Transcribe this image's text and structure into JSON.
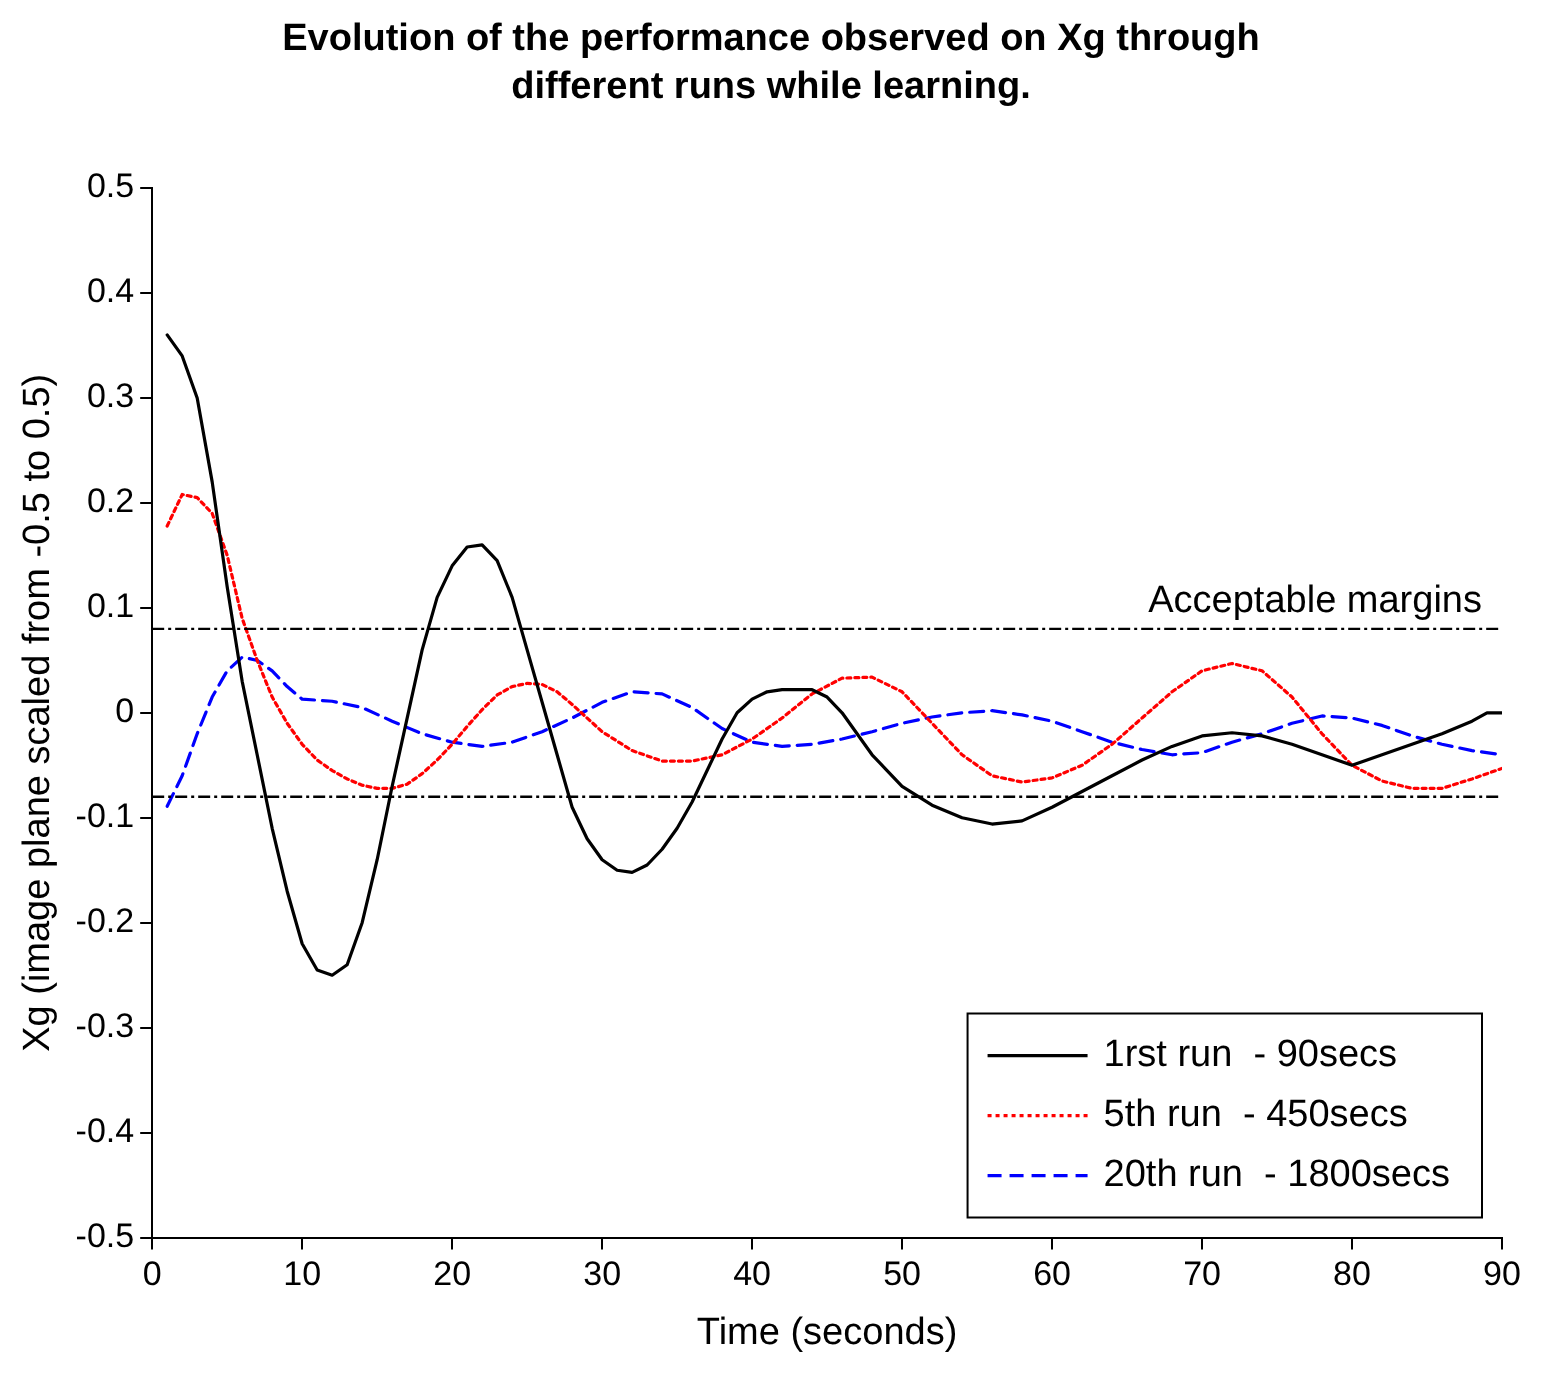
{
  "chart_data": {
    "type": "line",
    "title": "Evolution of the performance observed on Xg through different runs while learning.",
    "xlabel": "Time (seconds)",
    "ylabel": "Xg (image plane scaled from -0.5 to 0.5)",
    "xlim": [
      0,
      90
    ],
    "xticks": [
      0,
      10,
      20,
      30,
      40,
      50,
      60,
      70,
      80,
      90
    ],
    "ylim": [
      -0.5,
      0.5
    ],
    "yticks": [
      -0.5,
      -0.4,
      -0.3,
      -0.2,
      -0.1,
      0,
      0.1,
      0.2,
      0.3,
      0.4,
      0.5
    ],
    "grid": false,
    "legend": "bottom right",
    "marker": "none",
    "ref_lines": [
      {
        "axis": "y",
        "value": 0.08,
        "label": "Acceptable margins",
        "color": "#000000"
      },
      {
        "axis": "y",
        "value": -0.08,
        "color": "#000000"
      }
    ],
    "series": [
      {
        "name": "1rst run  - 90secs",
        "color": "#000000",
        "line_style": "solid",
        "x": [
          1,
          2,
          3,
          4,
          5,
          6,
          7,
          8,
          9,
          10,
          11,
          12,
          13,
          14,
          15,
          16,
          17,
          18,
          19,
          20,
          21,
          22,
          23,
          24,
          25,
          26,
          27,
          28,
          29,
          30,
          31,
          32,
          33,
          34,
          35,
          36,
          37,
          38,
          39,
          40,
          41,
          42,
          43,
          44,
          45,
          46,
          47,
          48,
          49,
          50,
          52,
          54,
          56,
          58,
          60,
          62,
          64,
          66,
          68,
          70,
          72,
          74,
          76,
          78,
          80,
          82,
          84,
          86,
          88,
          89,
          90
        ],
        "values": [
          0.36,
          0.34,
          0.3,
          0.22,
          0.12,
          0.03,
          -0.04,
          -0.11,
          -0.17,
          -0.22,
          -0.245,
          -0.25,
          -0.24,
          -0.2,
          -0.14,
          -0.07,
          -0.005,
          0.06,
          0.11,
          0.14,
          0.158,
          0.16,
          0.145,
          0.11,
          0.06,
          0.01,
          -0.04,
          -0.09,
          -0.12,
          -0.14,
          -0.15,
          -0.152,
          -0.145,
          -0.13,
          -0.11,
          -0.085,
          -0.055,
          -0.025,
          0.0,
          0.013,
          0.02,
          0.022,
          0.022,
          0.022,
          0.015,
          0.0,
          -0.02,
          -0.04,
          -0.055,
          -0.07,
          -0.088,
          -0.1,
          -0.106,
          -0.103,
          -0.09,
          -0.075,
          -0.06,
          -0.045,
          -0.032,
          -0.022,
          -0.019,
          -0.022,
          -0.03,
          -0.04,
          -0.05,
          -0.04,
          -0.03,
          -0.02,
          -0.008,
          0.0,
          0.0
        ]
      },
      {
        "name": "5th run  - 450secs",
        "color": "#ff0000",
        "line_style": "dotted",
        "x": [
          1,
          2,
          3,
          4,
          5,
          6,
          7,
          8,
          9,
          10,
          11,
          12,
          13,
          14,
          15,
          16,
          17,
          18,
          19,
          20,
          21,
          22,
          23,
          24,
          25,
          26,
          27,
          28,
          30,
          32,
          34,
          36,
          38,
          40,
          42,
          44,
          46,
          48,
          50,
          52,
          54,
          56,
          58,
          60,
          62,
          64,
          66,
          68,
          70,
          72,
          74,
          76,
          78,
          80,
          82,
          84,
          86,
          88,
          90
        ],
        "values": [
          0.178,
          0.208,
          0.205,
          0.19,
          0.15,
          0.09,
          0.05,
          0.015,
          -0.01,
          -0.03,
          -0.045,
          -0.055,
          -0.063,
          -0.069,
          -0.072,
          -0.072,
          -0.068,
          -0.058,
          -0.045,
          -0.03,
          -0.013,
          0.003,
          0.017,
          0.025,
          0.028,
          0.027,
          0.02,
          0.008,
          -0.018,
          -0.036,
          -0.046,
          -0.046,
          -0.04,
          -0.025,
          -0.005,
          0.018,
          0.033,
          0.034,
          0.02,
          -0.01,
          -0.04,
          -0.06,
          -0.066,
          -0.062,
          -0.05,
          -0.03,
          -0.005,
          0.02,
          0.04,
          0.047,
          0.04,
          0.015,
          -0.02,
          -0.05,
          -0.065,
          -0.072,
          -0.072,
          -0.063,
          -0.053
        ]
      },
      {
        "name": "20th run  - 1800secs",
        "color": "#0000ff",
        "line_style": "dashed",
        "x": [
          1,
          2,
          3,
          4,
          5,
          6,
          7,
          8,
          9,
          10,
          12,
          14,
          16,
          18,
          20,
          22,
          24,
          26,
          28,
          30,
          32,
          34,
          36,
          38,
          40,
          42,
          44,
          46,
          48,
          50,
          52,
          54,
          56,
          58,
          60,
          62,
          64,
          66,
          68,
          70,
          72,
          74,
          76,
          78,
          80,
          82,
          84,
          86,
          88,
          90
        ],
        "values": [
          -0.089,
          -0.06,
          -0.02,
          0.015,
          0.04,
          0.053,
          0.05,
          0.04,
          0.025,
          0.013,
          0.011,
          0.005,
          -0.008,
          -0.02,
          -0.028,
          -0.032,
          -0.028,
          -0.018,
          -0.005,
          0.01,
          0.02,
          0.018,
          0.005,
          -0.015,
          -0.028,
          -0.032,
          -0.03,
          -0.025,
          -0.018,
          -0.01,
          -0.004,
          0.0,
          0.002,
          -0.002,
          -0.008,
          -0.018,
          -0.028,
          -0.035,
          -0.04,
          -0.038,
          -0.028,
          -0.02,
          -0.01,
          -0.003,
          -0.005,
          -0.012,
          -0.022,
          -0.03,
          -0.036,
          -0.04
        ]
      }
    ]
  }
}
